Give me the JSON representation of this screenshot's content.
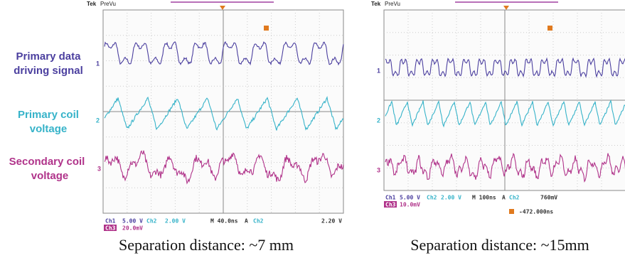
{
  "labels": [
    {
      "lines": [
        "Primary data",
        "driving signal"
      ]
    },
    {
      "lines": [
        "Primary coil",
        "voltage"
      ]
    },
    {
      "lines": [
        "Secondary coil",
        "voltage"
      ]
    }
  ],
  "panels": [
    {
      "brand": "Tek",
      "mode": "PreVu",
      "markers": [
        "1",
        "2",
        "3"
      ],
      "readout": [
        "Ch1",
        "5.00 V",
        "Ch2",
        "2.00 V",
        "M 40.0ns",
        "A",
        "Ch2",
        "2.20 V",
        "Ch3",
        "20.0mV"
      ],
      "caption": "Separation distance: ~7 mm"
    },
    {
      "brand": "Tek",
      "mode": "PreVu",
      "markers": [
        "1",
        "2",
        "3"
      ],
      "readout": [
        "Ch1",
        "5.00 V",
        "Ch2",
        "2.00 V",
        "M 100ns",
        "A",
        "Ch2",
        "760mV",
        "Ch3",
        "10.0mV",
        "-472.000ns"
      ],
      "caption": "Separation distance: ~15mm"
    }
  ]
}
